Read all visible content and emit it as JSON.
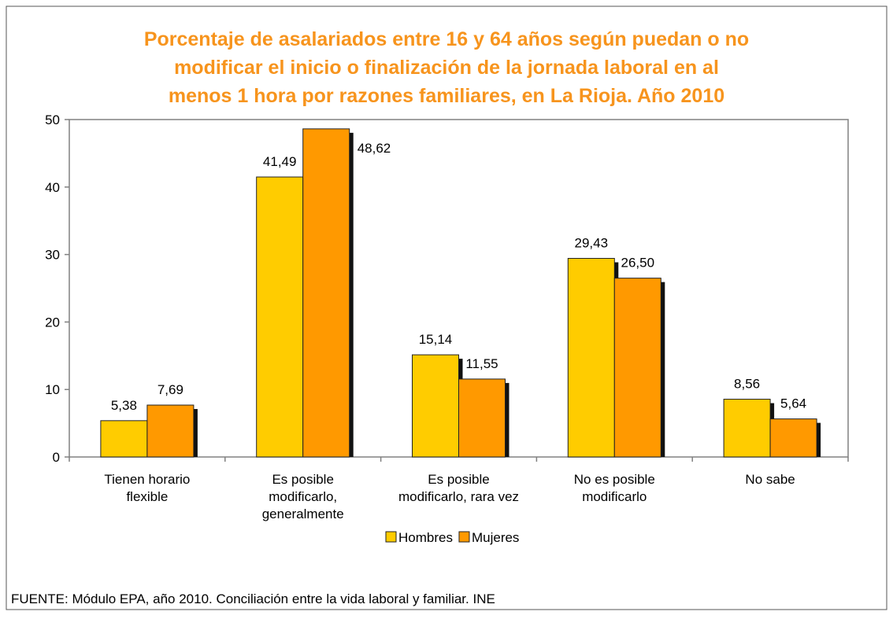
{
  "chart_data": {
    "type": "bar",
    "title": [
      "Porcentaje de asalariados entre 16 y 64 años según puedan o no",
      "modificar el inicio o finalización de la jornada laboral en al",
      "menos 1 hora por razones familiares, en La Rioja. Año 2010"
    ],
    "categories": [
      [
        "Tienen horario",
        "flexible"
      ],
      [
        "Es posible",
        "modificarlo,",
        "generalmente"
      ],
      [
        "Es posible",
        "modificarlo, rara vez"
      ],
      [
        "No es posible",
        "modificarlo"
      ],
      [
        "No sabe"
      ]
    ],
    "series": [
      {
        "name": "Hombres",
        "color": "#FFCC00",
        "values": [
          5.38,
          41.49,
          15.14,
          29.43,
          8.56
        ],
        "value_labels": [
          "5,38",
          "41,49",
          "15,14",
          "29,43",
          "8,56"
        ]
      },
      {
        "name": "Mujeres",
        "color": "#FF9900",
        "values": [
          7.69,
          48.62,
          11.55,
          26.5,
          5.64
        ],
        "value_labels": [
          "7,69",
          "48,62",
          "11,55",
          "26,50",
          "5,64"
        ]
      }
    ],
    "ylim": [
      0,
      50
    ],
    "yticks": [
      0,
      10,
      20,
      30,
      40,
      50
    ],
    "legend": "bottom",
    "source": "FUENTE: Módulo EPA, año 2010. Conciliación entre la vida laboral y familiar. INE"
  }
}
